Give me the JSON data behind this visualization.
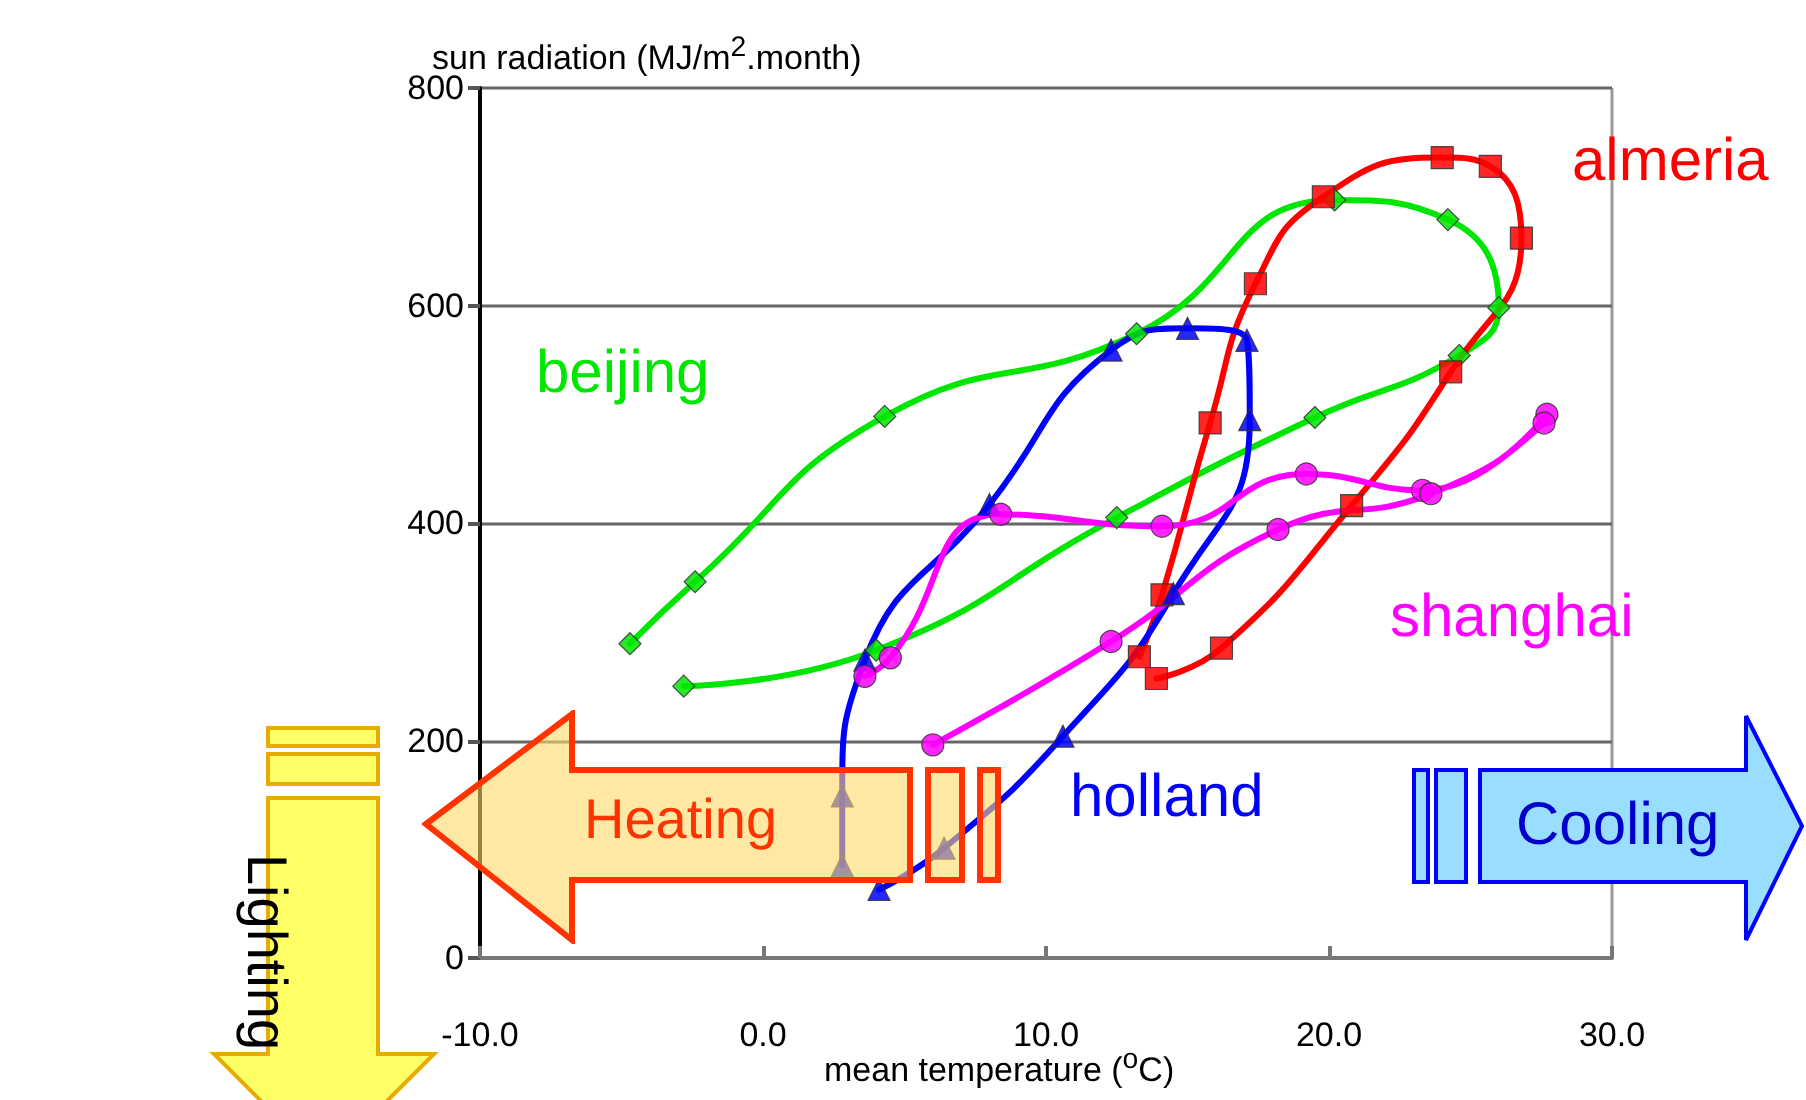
{
  "chart_data": {
    "type": "line",
    "xlabel": "mean temperature ($^{o}$C)",
    "ylabel": "sun radiation (MJ/m$^{2}$.month)",
    "xlim": [
      -10,
      30
    ],
    "xticks": [
      {
        "value": -10,
        "label": "-10.0"
      },
      {
        "value": 0,
        "label": "0.0"
      },
      {
        "value": 10,
        "label": "10.0"
      },
      {
        "value": 20,
        "label": "20.0"
      },
      {
        "value": 30,
        "label": "30.0"
      }
    ],
    "ylim": [
      0,
      800
    ],
    "yticks": [
      0,
      200,
      400,
      600,
      800
    ],
    "grid": "y",
    "line_style": "solid",
    "series": [
      {
        "name": "beijing",
        "color": "#00e600",
        "marker": "diamond",
        "x": [
          -4.7,
          -2.4,
          4.3,
          13.2,
          20.2,
          24.2,
          26.0,
          24.6,
          19.5,
          12.5,
          4.0,
          -2.8
        ],
        "values": [
          289,
          346,
          498,
          574,
          697,
          679,
          598,
          554,
          497,
          405,
          283,
          250
        ]
      },
      {
        "name": "almeria",
        "color": "#ff0000",
        "marker": "square",
        "x": [
          13.3,
          14.1,
          15.8,
          17.4,
          19.8,
          24.0,
          25.7,
          26.8,
          24.3,
          20.8,
          16.2,
          13.9
        ],
        "values": [
          277,
          334,
          492,
          620,
          700,
          736,
          728,
          662,
          539,
          416,
          285,
          257
        ]
      },
      {
        "name": "holland",
        "color": "#0000ff",
        "marker": "triangle",
        "x": [
          2.8,
          2.8,
          3.6,
          8.0,
          12.3,
          15.0,
          17.1,
          17.2,
          14.5,
          10.6,
          6.4,
          4.1
        ],
        "values": [
          85,
          149,
          274,
          417,
          559,
          579,
          568,
          495,
          335,
          204,
          101,
          63
        ]
      },
      {
        "name": "shanghai",
        "color": "#ff00ff",
        "marker": "circle",
        "x": [
          3.6,
          4.5,
          8.4,
          14.1,
          19.2,
          23.3,
          27.7,
          27.6,
          23.6,
          18.2,
          12.3,
          6.0
        ],
        "values": [
          259,
          276,
          408,
          397,
          445,
          430,
          500,
          492,
          427,
          394,
          291,
          196
        ]
      }
    ],
    "annotations": [
      "Heating",
      "Cooling",
      "Lighting"
    ]
  }
}
